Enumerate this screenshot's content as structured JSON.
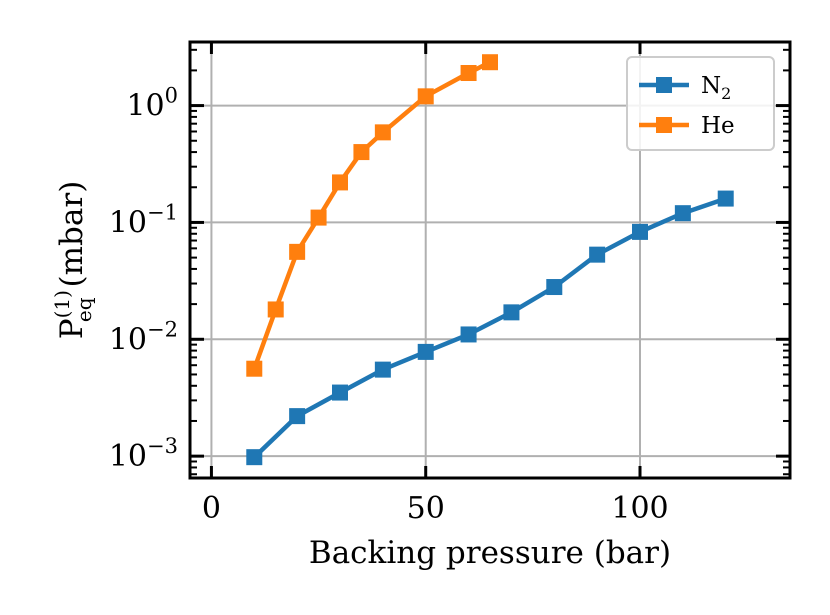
{
  "chart_data": {
    "type": "line",
    "xlabel": "Backing pressure (bar)",
    "ylabel": {
      "base": "P",
      "sup": "(1)",
      "sub": "eq",
      "unit": "(mbar)"
    },
    "xlim": [
      -5,
      135
    ],
    "ylim": [
      0.00065,
      3.5
    ],
    "yscale": "log",
    "grid": true,
    "legend_position": "top-right",
    "x_ticks": [
      {
        "value": 0,
        "label": "0"
      },
      {
        "value": 50,
        "label": "50"
      },
      {
        "value": 100,
        "label": "100"
      }
    ],
    "y_ticks": [
      {
        "value": 0.001,
        "base": "10",
        "exp": "−3"
      },
      {
        "value": 0.01,
        "base": "10",
        "exp": "−2"
      },
      {
        "value": 0.1,
        "base": "10",
        "exp": "−1"
      },
      {
        "value": 1,
        "base": "10",
        "exp": "0"
      }
    ],
    "series": [
      {
        "name": "N",
        "name_sub": "2",
        "color": "#1f77b4",
        "x": [
          10,
          20,
          30,
          40,
          50,
          60,
          70,
          80,
          90,
          100,
          110,
          120
        ],
        "y": [
          0.00098,
          0.0022,
          0.0035,
          0.0055,
          0.0078,
          0.011,
          0.017,
          0.028,
          0.053,
          0.083,
          0.12,
          0.16
        ]
      },
      {
        "name": "He",
        "name_sub": "",
        "color": "#ff7f0e",
        "x": [
          10,
          15,
          20,
          25,
          30,
          35,
          40,
          50,
          60,
          65
        ],
        "y": [
          0.0056,
          0.018,
          0.056,
          0.11,
          0.22,
          0.4,
          0.59,
          1.2,
          1.9,
          2.35
        ]
      }
    ]
  }
}
